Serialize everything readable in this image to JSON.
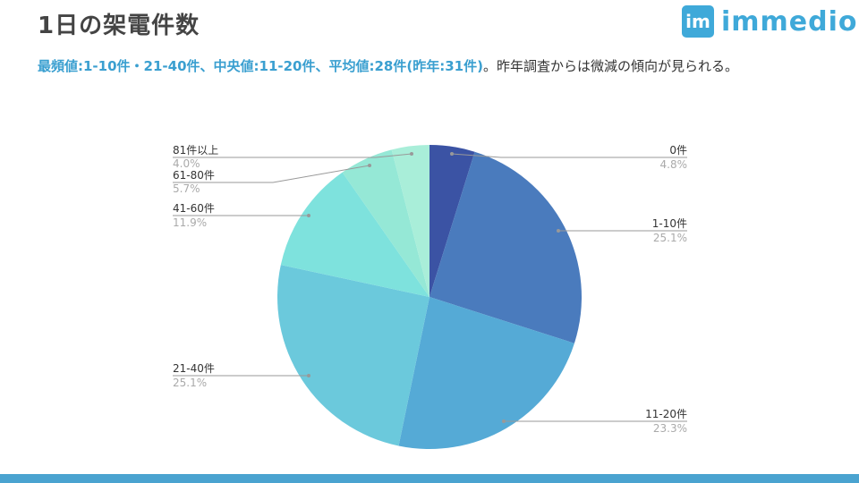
{
  "header": {
    "title": "1日の架電件数",
    "logo_mark": "im",
    "logo_text": "immedio"
  },
  "description": {
    "highlight": "最頻値:1-10件・21-40件、中央値:11-20件、平均値:28件(昨年:31件)",
    "rest": "。昨年調査からは微減の傾向が見られる。"
  },
  "chart_data": {
    "type": "pie",
    "title": "",
    "categories": [
      "0件",
      "1-10件",
      "11-20件",
      "21-40件",
      "41-60件",
      "61-80件",
      "81件以上"
    ],
    "values": [
      4.8,
      25.1,
      23.3,
      25.1,
      11.9,
      5.7,
      4.0
    ],
    "labels": [
      "4.8%",
      "25.1%",
      "23.3%",
      "25.1%",
      "11.9%",
      "5.7%",
      "4.0%"
    ],
    "colors": [
      "#3b53a4",
      "#4a7bbd",
      "#55aad6",
      "#6bc9dc",
      "#7ee2dd",
      "#95e8d6",
      "#a9eed9"
    ],
    "start": "top",
    "direction": "clockwise",
    "legend": "none"
  },
  "footer": {
    "bar_color": "#4aa3d0"
  }
}
